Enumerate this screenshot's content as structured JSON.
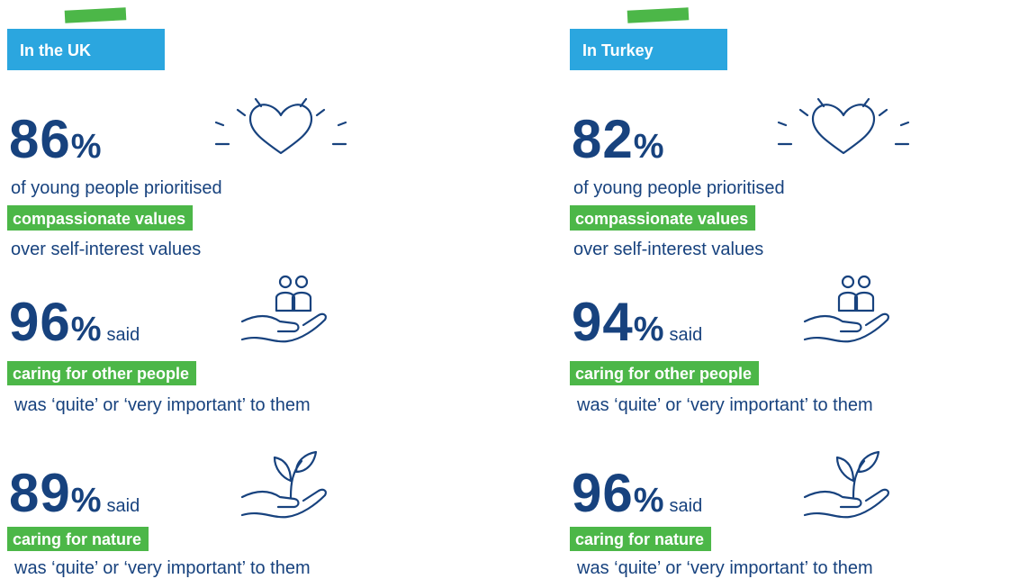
{
  "panels": [
    {
      "label": "In the UK",
      "stats": [
        {
          "value": 86,
          "unit": "%",
          "before": "of young people prioritised",
          "highlight": "compassionate values",
          "after": "over self-interest values"
        },
        {
          "value": 96,
          "unit": "%",
          "suffix": "said",
          "highlight": "caring for other people",
          "after": "was ‘quite’ or ‘very important’ to them"
        },
        {
          "value": 89,
          "unit": "%",
          "suffix": "said",
          "highlight": "caring for nature",
          "after": "was ‘quite’ or ‘very important’ to them"
        }
      ]
    },
    {
      "label": "In Turkey",
      "stats": [
        {
          "value": 82,
          "unit": "%",
          "before": "of young people prioritised",
          "highlight": "compassionate values",
          "after": "over self-interest values"
        },
        {
          "value": 94,
          "unit": "%",
          "suffix": "said",
          "highlight": "caring for other people",
          "after": "was ‘quite’ or ‘very important’ to them"
        },
        {
          "value": 96,
          "unit": "%",
          "suffix": "said",
          "highlight": "caring for nature",
          "after": "was ‘quite’ or ‘very important’ to them"
        }
      ]
    }
  ]
}
